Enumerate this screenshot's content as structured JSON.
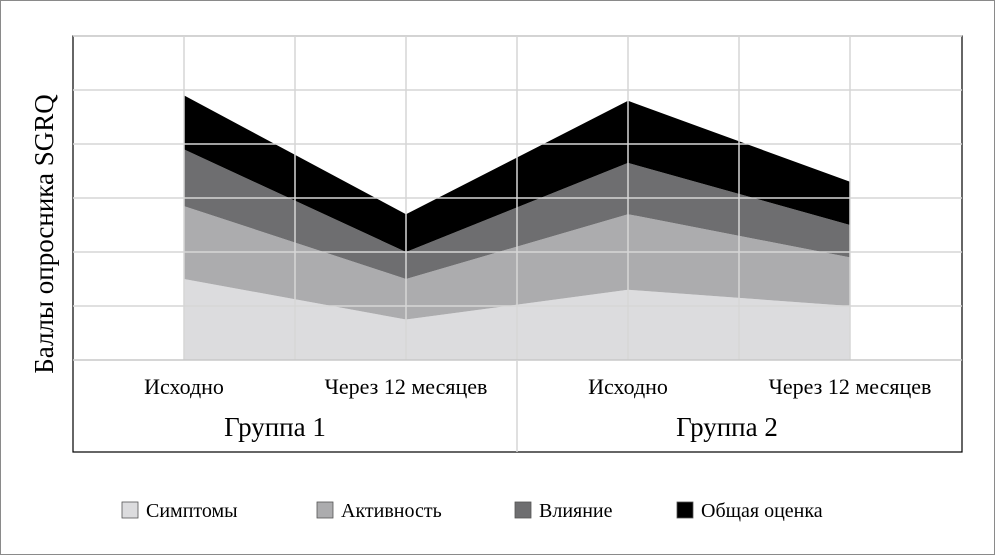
{
  "chart_data": {
    "type": "area",
    "stacked": true,
    "title": "",
    "xlabel": "",
    "ylabel": "Баллы опросника SGRQ",
    "grid": true,
    "legend_position": "bottom",
    "categories": [
      "Исходно",
      "Через 12 месяцев",
      "Исходно",
      "Через 12 месяцев"
    ],
    "groups": [
      {
        "label": "Группа 1",
        "span": [
          0,
          1
        ]
      },
      {
        "label": "Группа 2",
        "span": [
          2,
          3
        ]
      }
    ],
    "ylim": [
      0,
      60
    ],
    "series": [
      {
        "name": "Симптомы",
        "color": "#dcdcde",
        "values": [
          15,
          7.5,
          13,
          10
        ]
      },
      {
        "name": "Активность",
        "color": "#acacae",
        "values": [
          13.5,
          7.5,
          14,
          9
        ]
      },
      {
        "name": "Влияние",
        "color": "#6e6e70",
        "values": [
          10.5,
          5,
          9.5,
          6
        ]
      },
      {
        "name": "Общая оценка",
        "color": "#000000",
        "values": [
          10,
          7,
          11.5,
          8
        ]
      }
    ]
  }
}
